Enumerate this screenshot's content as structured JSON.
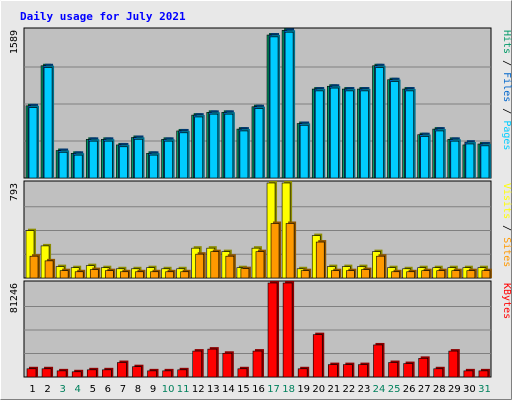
{
  "chart_data": {
    "type": "bar",
    "title": "Daily usage for July 2021",
    "categories": [
      "1",
      "2",
      "3",
      "4",
      "5",
      "6",
      "7",
      "8",
      "9",
      "10",
      "11",
      "12",
      "13",
      "14",
      "15",
      "16",
      "17",
      "18",
      "19",
      "20",
      "21",
      "22",
      "23",
      "24",
      "25",
      "26",
      "27",
      "28",
      "29",
      "30",
      "31"
    ],
    "weekend_days": [
      "3",
      "4",
      "10",
      "11",
      "17",
      "18",
      "24",
      "25",
      "31"
    ],
    "colors": {
      "hits": "#009966",
      "files": "#0066cc",
      "pages": "#00ccff",
      "visits": "#ffff00",
      "sites": "#ff9900",
      "kbytes": "#ff0000",
      "weekday_label": "#000000",
      "weekend_label": "#00805c",
      "title": "#0000ff",
      "plot_bg": "#c0c0c0",
      "frame_bg": "#e8e8e8"
    },
    "panels": [
      {
        "name": "requests",
        "ymax_label": "1589",
        "ymax": 1589,
        "legend": [
          {
            "text": "Pages",
            "color": "#00ccff"
          },
          {
            "text": "Files",
            "color": "#0066cc"
          },
          {
            "text": "Hits",
            "color": "#009966"
          }
        ],
        "series": [
          {
            "name": "Hits",
            "values": [
              775,
              1205,
              295,
              265,
              415,
              415,
              355,
              435,
              265,
              415,
              505,
              675,
              705,
              705,
              525,
              765,
              1535,
              1585,
              585,
              955,
              985,
              955,
              955,
              1205,
              1055,
              955,
              465,
              525,
              415,
              355,
              365
            ]
          },
          {
            "name": "Files",
            "values": [
              775,
              1205,
              295,
              265,
              415,
              415,
              355,
              435,
              265,
              415,
              505,
              675,
              705,
              705,
              525,
              765,
              1535,
              1585,
              585,
              955,
              985,
              955,
              955,
              1205,
              1055,
              955,
              465,
              525,
              415,
              385,
              365
            ]
          },
          {
            "name": "Pages",
            "values": [
              755,
              1185,
              275,
              245,
              395,
              395,
              335,
              415,
              245,
              395,
              485,
              655,
              685,
              685,
              505,
              745,
              1515,
              1565,
              565,
              935,
              965,
              935,
              935,
              1185,
              1035,
              935,
              445,
              505,
              395,
              365,
              345
            ]
          }
        ]
      },
      {
        "name": "visitors",
        "ymax_label": "793",
        "ymax": 793,
        "legend": [
          {
            "text": "Sites",
            "color": "#ff9900"
          },
          {
            "text": "Visits",
            "color": "#ffff00"
          }
        ],
        "series": [
          {
            "name": "Visits",
            "values": [
              395,
              268,
              95,
              86,
              103,
              86,
              77,
              77,
              86,
              77,
              77,
              249,
              249,
              220,
              86,
              249,
              793,
              793,
              77,
              354,
              95,
              95,
              95,
              220,
              86,
              77,
              86,
              86,
              86,
              86,
              86
            ]
          },
          {
            "name": "Sites",
            "values": [
              182,
              143,
              61,
              52,
              70,
              61,
              52,
              52,
              52,
              52,
              52,
              199,
              220,
              182,
              78,
              220,
              455,
              455,
              61,
              300,
              61,
              61,
              70,
              182,
              52,
              52,
              61,
              61,
              61,
              61,
              61
            ]
          }
        ]
      },
      {
        "name": "kbytes",
        "ymax_label": "81246",
        "ymax": 81246,
        "legend": [
          {
            "text": "KBytes",
            "color": "#ff0000"
          }
        ],
        "series": [
          {
            "name": "KBytes",
            "values": [
              7100,
              7100,
              5300,
              4500,
              6200,
              6200,
              12500,
              8900,
              5300,
              5300,
              6200,
              22400,
              24100,
              20500,
              7100,
              22400,
              81246,
              81246,
              7100,
              36600,
              10700,
              10700,
              10700,
              27700,
              12500,
              11600,
              16100,
              7100,
              22400,
              5300,
              5300
            ]
          }
        ]
      }
    ]
  }
}
